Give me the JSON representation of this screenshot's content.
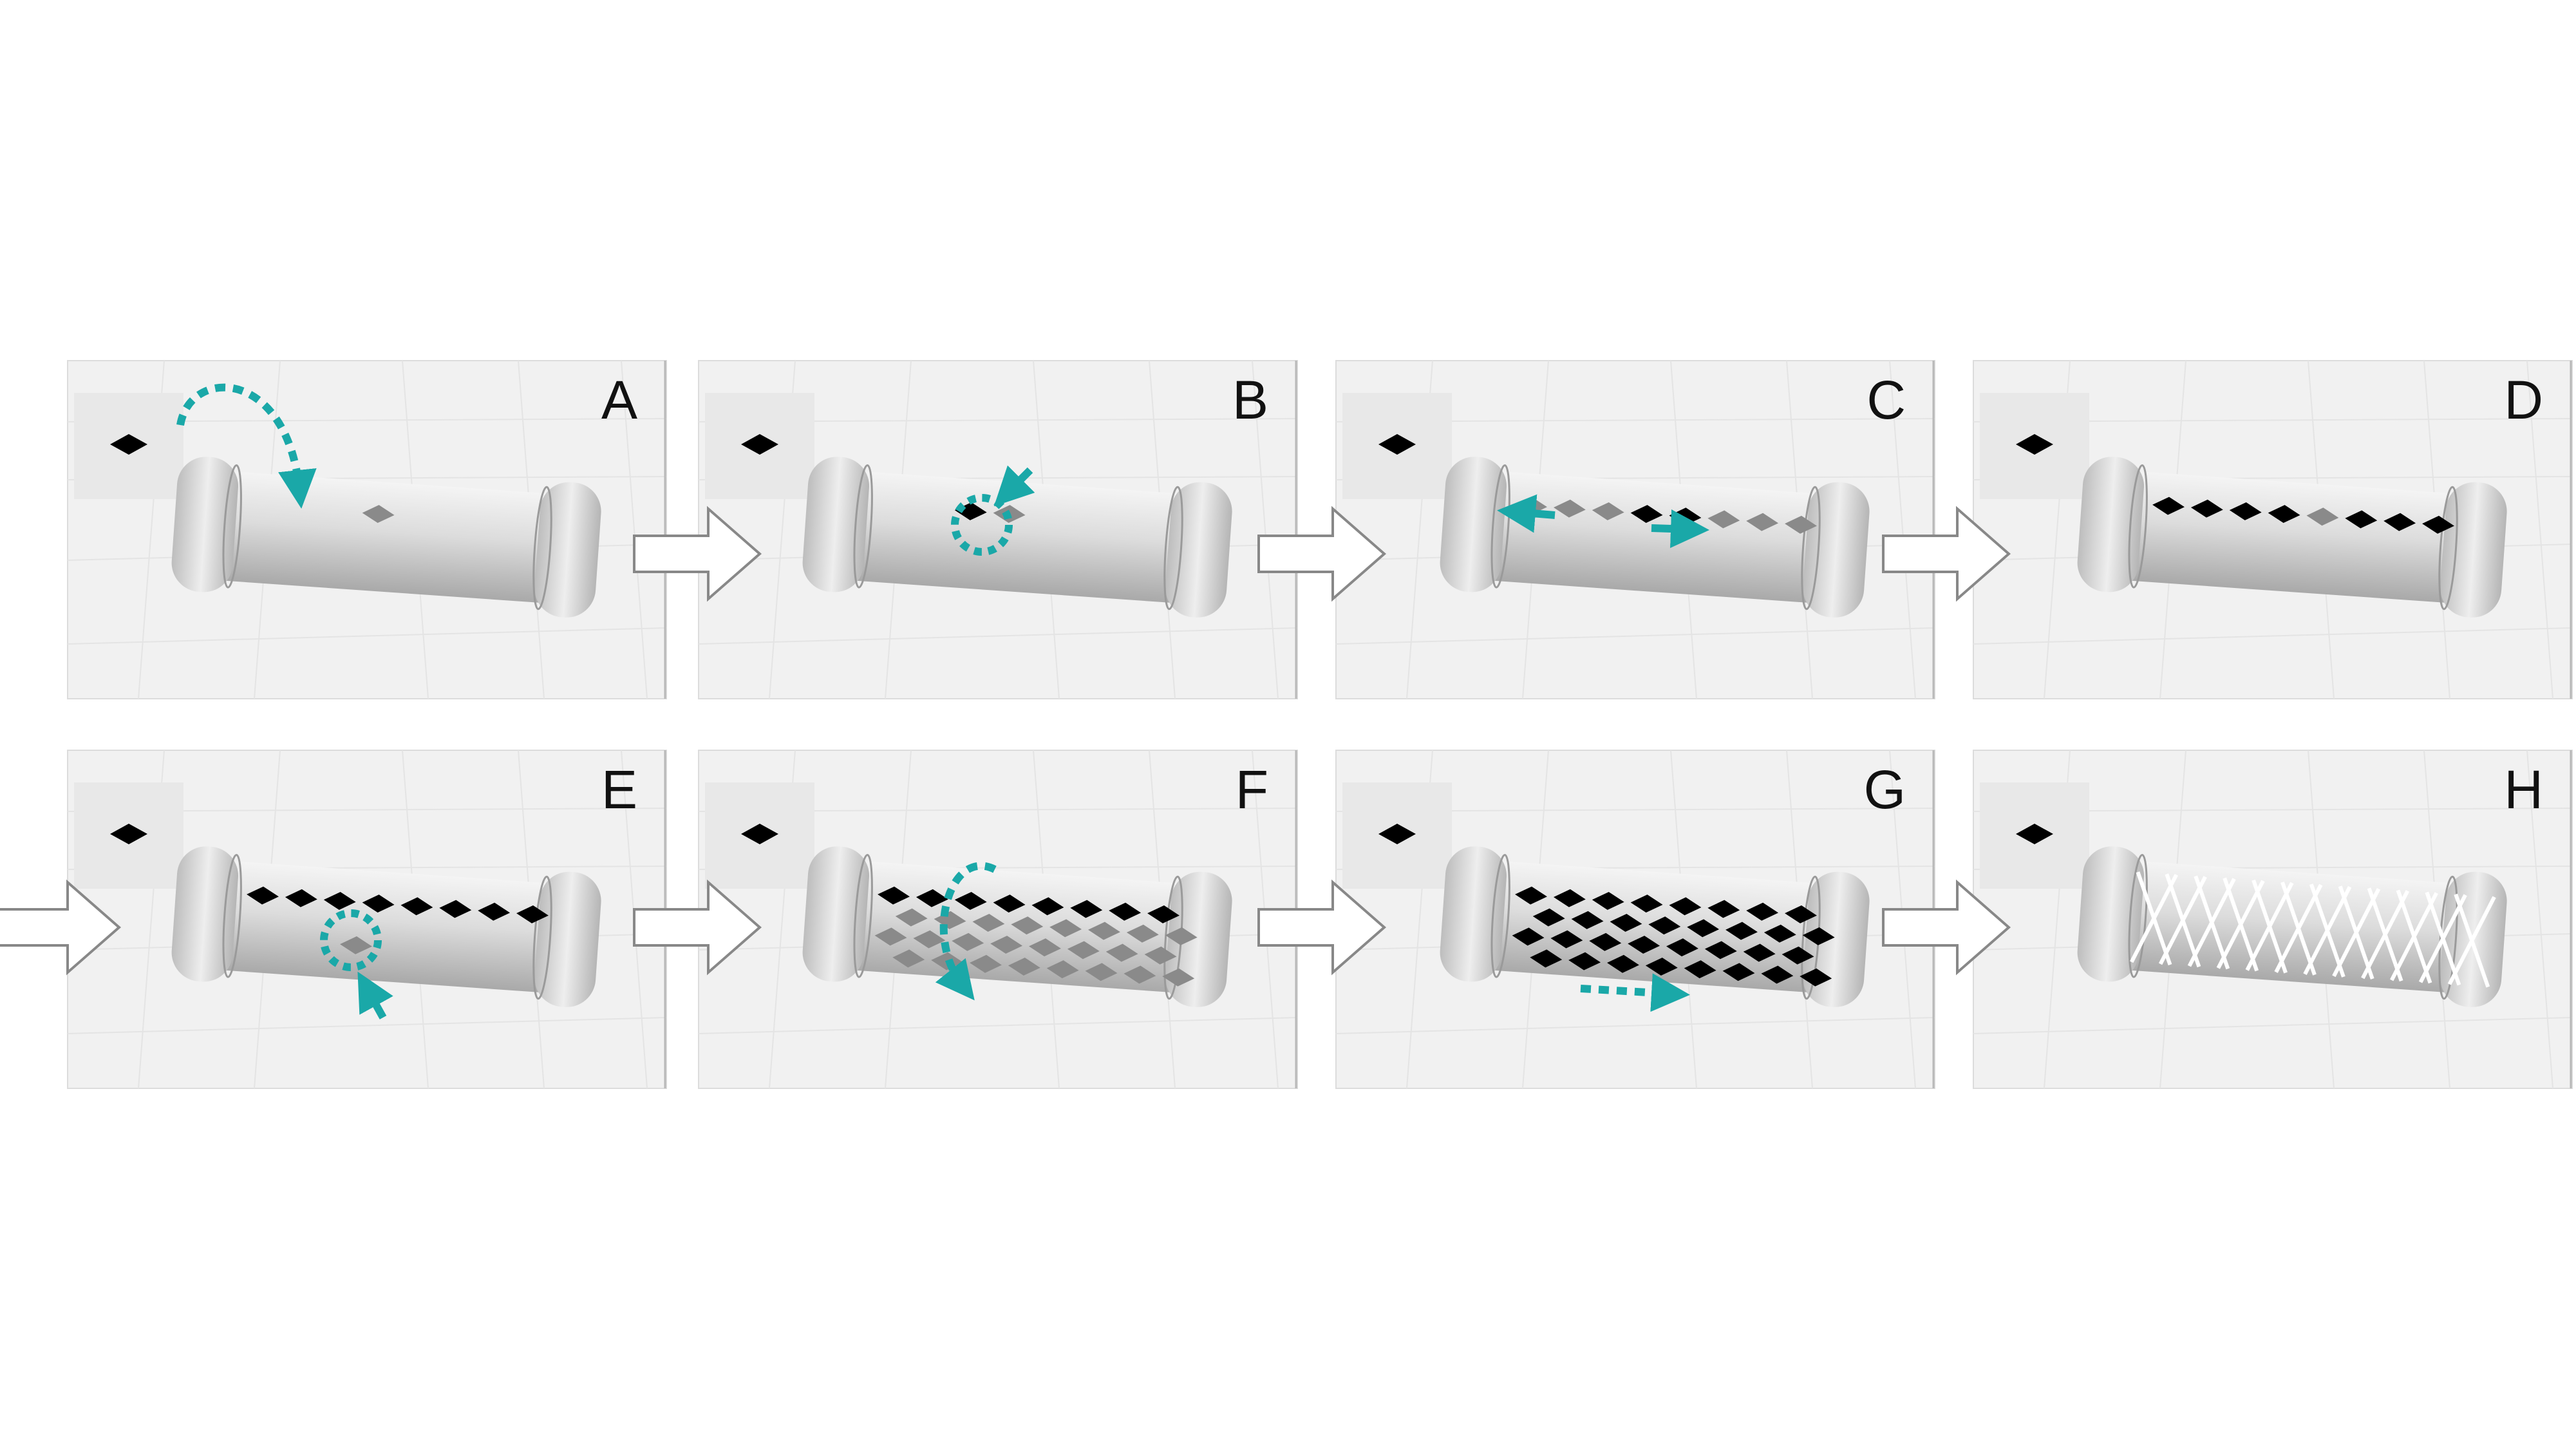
{
  "steps": [
    {
      "label": "A",
      "pattern": "single",
      "annotation": "curved-arrow"
    },
    {
      "label": "B",
      "pattern": "pair",
      "annotation": "dotted-circle-top"
    },
    {
      "label": "C",
      "pattern": "row-partial",
      "annotation": "double-arrows"
    },
    {
      "label": "D",
      "pattern": "row",
      "annotation": "none"
    },
    {
      "label": "E",
      "pattern": "row-plus-one",
      "annotation": "dotted-circle-bottom"
    },
    {
      "label": "F",
      "pattern": "grid-partial",
      "annotation": "rotate-arrow"
    },
    {
      "label": "G",
      "pattern": "grid",
      "annotation": "dotted-arrow-right"
    },
    {
      "label": "H",
      "pattern": "lattice",
      "annotation": "none"
    }
  ],
  "colors": {
    "background": "#ffffff",
    "panel": "#f1f1f1",
    "cylinder": "#d8d8d8",
    "diamond": "#000000",
    "diamond_gray": "#8a8a8a",
    "accent": "#1aa8a8",
    "flow_arrow_fill": "#ffffff",
    "flow_arrow_stroke": "#888888"
  },
  "icons": {
    "flow_arrow": "right-arrow-icon",
    "thumbnail": "diamond-icon"
  }
}
